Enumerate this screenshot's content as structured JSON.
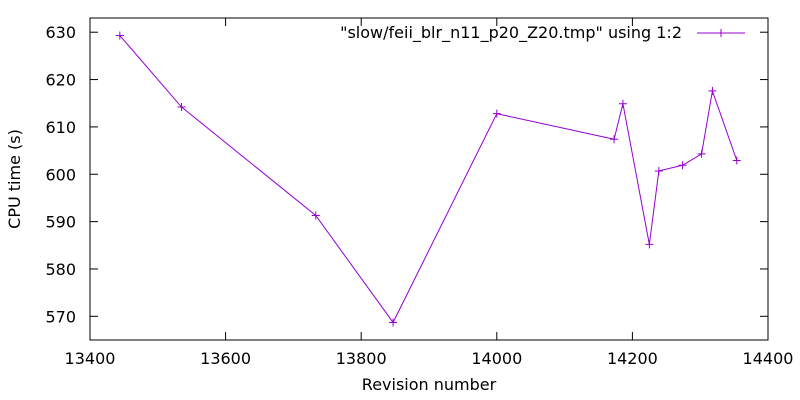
{
  "chart_data": {
    "type": "line",
    "title": "",
    "xlabel": "Revision number",
    "ylabel": "CPU time (s)",
    "xlim": [
      13400,
      14400
    ],
    "ylim": [
      565,
      633
    ],
    "xticks": [
      13400,
      13600,
      13800,
      14000,
      14200,
      14400
    ],
    "yticks": [
      570,
      580,
      590,
      600,
      610,
      620,
      630
    ],
    "grid": false,
    "legend_position": "top-right",
    "series": [
      {
        "name": "\"slow/feii_blr_n11_p20_Z20.tmp\" using 1:2",
        "color": "#9400d3",
        "marker": "plus",
        "x": [
          13444,
          13535,
          13733,
          13847,
          14000,
          14173,
          14186,
          14225,
          14239,
          14274,
          14302,
          14318,
          14354
        ],
        "y": [
          629.3,
          614.2,
          591.3,
          568.7,
          612.8,
          607.4,
          614.9,
          585.2,
          600.7,
          601.9,
          604.3,
          617.6,
          602.9
        ]
      }
    ]
  }
}
